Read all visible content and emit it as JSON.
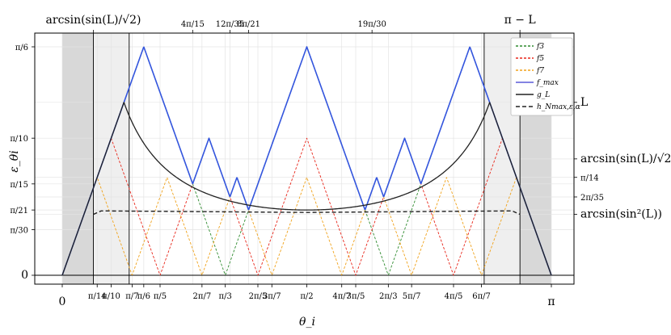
{
  "chart_data": {
    "type": "line",
    "xlabel": "θ_i",
    "ylabel": "ε_θi",
    "x_domain": [
      0,
      3.14159
    ],
    "y_domain": [
      0,
      0.5236
    ],
    "grid": true,
    "legend_position": "top-right",
    "shaded_regions": [
      {
        "from": 0,
        "to": 0.2,
        "shade": "dark"
      },
      {
        "from": 0.2,
        "to": 0.43,
        "shade": "light"
      },
      {
        "from": 2.71,
        "to": 2.94,
        "shade": "light"
      },
      {
        "from": 2.94,
        "to": 3.14159,
        "shade": "dark"
      }
    ],
    "vertical_lines": [
      0.2,
      0.43,
      2.71,
      2.94
    ],
    "x_ticks_bottom": [
      {
        "value": 0,
        "label": "0",
        "big": true
      },
      {
        "value": 0.2244,
        "label": "π/14"
      },
      {
        "value": 0.3142,
        "label": "π/10"
      },
      {
        "value": 0.4488,
        "label": "π/7"
      },
      {
        "value": 0.5236,
        "label": "π/6"
      },
      {
        "value": 0.6283,
        "label": "π/5"
      },
      {
        "value": 0.8976,
        "label": "2π/7"
      },
      {
        "value": 1.0472,
        "label": "π/3"
      },
      {
        "value": 1.2566,
        "label": "2π/5"
      },
      {
        "value": 1.3464,
        "label": "3π/7"
      },
      {
        "value": 1.5708,
        "label": "π/2"
      },
      {
        "value": 1.7952,
        "label": "4π/7"
      },
      {
        "value": 1.885,
        "label": "3π/5"
      },
      {
        "value": 2.0944,
        "label": "2π/3"
      },
      {
        "value": 2.244,
        "label": "5π/7"
      },
      {
        "value": 2.5133,
        "label": "4π/5"
      },
      {
        "value": 2.6928,
        "label": "6π/7"
      },
      {
        "value": 3.14159,
        "label": "π",
        "big": true
      }
    ],
    "x_ticks_top": [
      {
        "value": 0.2,
        "label": "arcsin(sin(L)/√2)",
        "big": true
      },
      {
        "value": 0.8378,
        "label": "4π/15"
      },
      {
        "value": 1.077,
        "label": "12π/35"
      },
      {
        "value": 1.1968,
        "label": "8π/21"
      },
      {
        "value": 1.9897,
        "label": "19π/30"
      },
      {
        "value": 2.94,
        "label": "π − L",
        "big": true
      }
    ],
    "y_ticks_left": [
      {
        "value": 0,
        "label": "0",
        "big": true
      },
      {
        "value": 0.1047,
        "label": "π/30"
      },
      {
        "value": 0.1496,
        "label": "π/21"
      },
      {
        "value": 0.2094,
        "label": "π/15"
      },
      {
        "value": 0.3142,
        "label": "π/10"
      },
      {
        "value": 0.5236,
        "label": "π/6"
      }
    ],
    "y_ticks_right": [
      {
        "value": 0.1396,
        "label": "arcsin(sin²(L))",
        "big": true
      },
      {
        "value": 0.1795,
        "label": "2π/35"
      },
      {
        "value": 0.2244,
        "label": "π/14"
      },
      {
        "value": 0.2667,
        "label": "arcsin(sin(L)/√2)",
        "big": true
      },
      {
        "value": 0.3963,
        "label": "L",
        "big": true
      }
    ],
    "series": [
      {
        "name": "f3",
        "color": "#2e8b2e",
        "dash": "3,2",
        "width": 0.9,
        "kind": "tri",
        "n": 3
      },
      {
        "name": "f5",
        "color": "#e8261a",
        "dash": "3,2",
        "width": 0.9,
        "kind": "tri",
        "n": 5
      },
      {
        "name": "f7",
        "color": "#f0a21a",
        "dash": "3,2",
        "width": 0.9,
        "kind": "tri",
        "n": 7
      },
      {
        "name": "f_max",
        "color": "#3355dd",
        "dash": "",
        "width": 1.6,
        "kind": "max"
      },
      {
        "name": "g_L",
        "color": "#222222",
        "dash": "",
        "width": 1.3,
        "kind": "curve",
        "L": 0.3963,
        "peak_x": 0.3963
      },
      {
        "name": "h_Nmax,ε,α",
        "color": "#222222",
        "dash": "5,3",
        "width": 1.4,
        "kind": "flat",
        "x": [
          0.2,
          0.25,
          0.45,
          1.57,
          2.69,
          2.89,
          2.94
        ],
        "y": [
          0.1396,
          0.1475,
          0.147,
          0.144,
          0.147,
          0.1475,
          0.1396
        ]
      }
    ],
    "legend": [
      {
        "label": "f3",
        "color": "#2e8b2e",
        "dash": "3,2"
      },
      {
        "label": "f5",
        "color": "#e8261a",
        "dash": "3,2"
      },
      {
        "label": "f7",
        "color": "#f0a21a",
        "dash": "3,2"
      },
      {
        "label": "f_max",
        "color": "#5a5ad8",
        "dash": ""
      },
      {
        "label": "g_L",
        "color": "#222222",
        "dash": ""
      },
      {
        "label": "h_Nmax,ε,α",
        "color": "#222222",
        "dash": "5,3"
      }
    ]
  }
}
